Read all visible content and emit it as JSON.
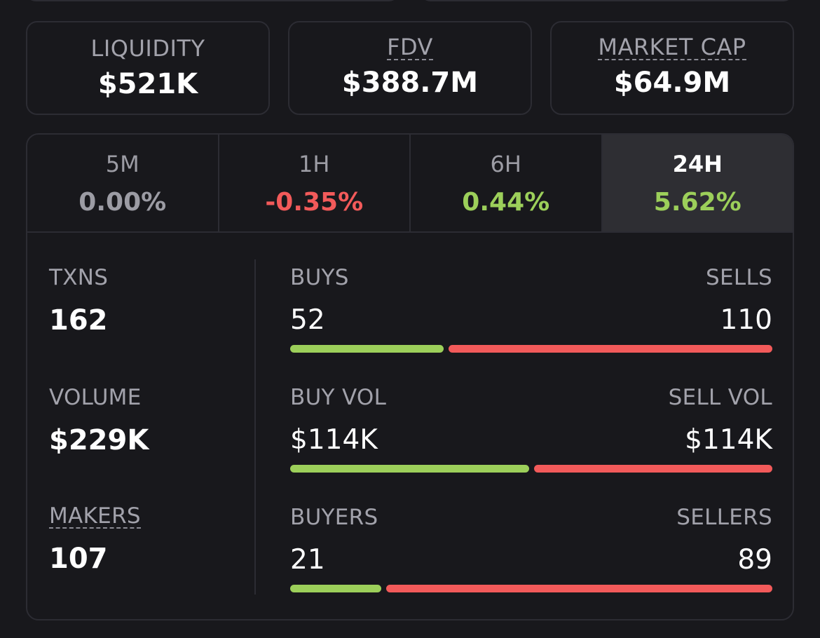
{
  "colors": {
    "positive": "#9ccf5a",
    "negative": "#f25a5a",
    "neutral": "#9c9ca4"
  },
  "metrics": [
    {
      "label": "LIQUIDITY",
      "value": "$521K",
      "dashed": false
    },
    {
      "label": "FDV",
      "value": "$388.7M",
      "dashed": true
    },
    {
      "label": "MARKET CAP",
      "value": "$64.9M",
      "dashed": true
    }
  ],
  "tabs": [
    {
      "label": "5M",
      "change": "0.00%",
      "tone": "neutral",
      "active": false
    },
    {
      "label": "1H",
      "change": "-0.35%",
      "tone": "negative",
      "active": false
    },
    {
      "label": "6H",
      "change": "0.44%",
      "tone": "positive",
      "active": false
    },
    {
      "label": "24H",
      "change": "5.62%",
      "tone": "positive",
      "active": true
    }
  ],
  "stats": {
    "txns": {
      "label": "TXNS",
      "value": "162"
    },
    "volume": {
      "label": "VOLUME",
      "value": "$229K"
    },
    "makers": {
      "label": "MAKERS",
      "value": "107"
    }
  },
  "ratios": {
    "buys": {
      "left_label": "BUYS",
      "right_label": "SELLS",
      "left_value": "52",
      "right_value": "110",
      "left_share": 0.321
    },
    "volume": {
      "left_label": "BUY VOL",
      "right_label": "SELL VOL",
      "left_value": "$114K",
      "right_value": "$114K",
      "left_share": 0.5
    },
    "buyers": {
      "left_label": "BUYERS",
      "right_label": "SELLERS",
      "left_value": "21",
      "right_value": "89",
      "left_share": 0.191
    }
  }
}
